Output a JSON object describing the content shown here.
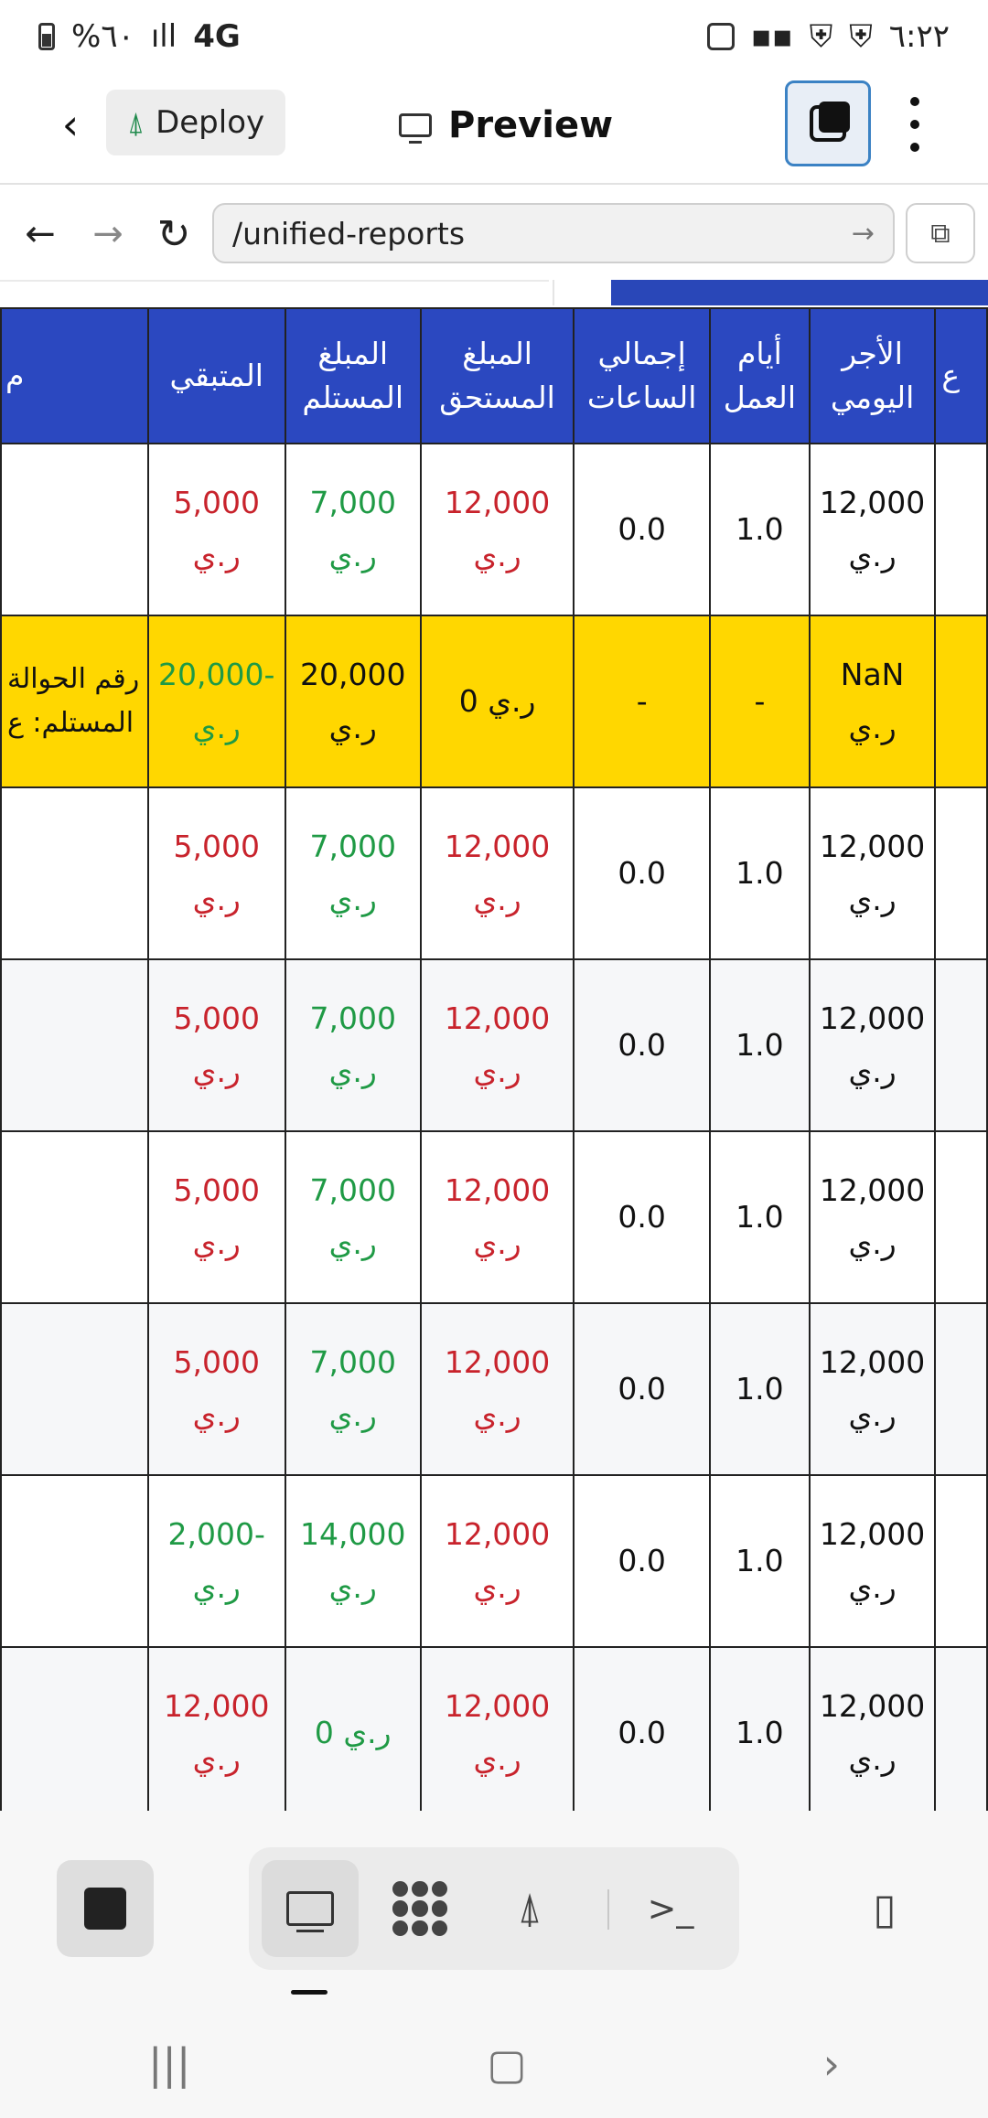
{
  "statusbar": {
    "time": "٦:٢٢",
    "battery": "%٦٠",
    "network": "4G"
  },
  "toolbar": {
    "deploy_label": "Deploy",
    "preview_title": "Preview"
  },
  "nav": {
    "url": "/unified-reports"
  },
  "table": {
    "headers": {
      "col_remaining": "المتبقي",
      "col_received": "المبلغ المستلم",
      "col_due": "المبلغ المستحق",
      "col_hours": "إجمالي الساعات",
      "col_days": "أيام العمل",
      "col_daily": "الأجر اليومي",
      "col_partial_left": "م",
      "col_partial_right": "ع"
    },
    "rows": [
      {
        "remaining": "5,000",
        "received": "7,000",
        "due": "12,000",
        "hours": "0.0",
        "days": "1.0",
        "daily": "12,000",
        "cur": "ر.ي"
      },
      {
        "remaining": "20,000-",
        "received": "20,000",
        "due": "0 ر.ي",
        "hours": "-",
        "days": "-",
        "daily": "NaN",
        "cur": "ر.ي",
        "note_line1": "رقم الحوالة",
        "note_line2": "المستلم: ع"
      },
      {
        "remaining": "5,000",
        "received": "7,000",
        "due": "12,000",
        "hours": "0.0",
        "days": "1.0",
        "daily": "12,000",
        "cur": "ر.ي"
      },
      {
        "remaining": "5,000",
        "received": "7,000",
        "due": "12,000",
        "hours": "0.0",
        "days": "1.0",
        "daily": "12,000",
        "cur": "ر.ي"
      },
      {
        "remaining": "5,000",
        "received": "7,000",
        "due": "12,000",
        "hours": "0.0",
        "days": "1.0",
        "daily": "12,000",
        "cur": "ر.ي"
      },
      {
        "remaining": "5,000",
        "received": "7,000",
        "due": "12,000",
        "hours": "0.0",
        "days": "1.0",
        "daily": "12,000",
        "cur": "ر.ي"
      },
      {
        "remaining": "2,000-",
        "received": "14,000",
        "due": "12,000",
        "hours": "0.0",
        "days": "1.0",
        "daily": "12,000",
        "cur": "ر.ي"
      },
      {
        "remaining": "12,000",
        "received": "0 ر.ي",
        "due": "12,000",
        "hours": "0.0",
        "days": "1.0",
        "daily": "12,000",
        "cur": "ر.ي"
      }
    ]
  },
  "bottombar": {
    "terminal_label": ">_"
  }
}
